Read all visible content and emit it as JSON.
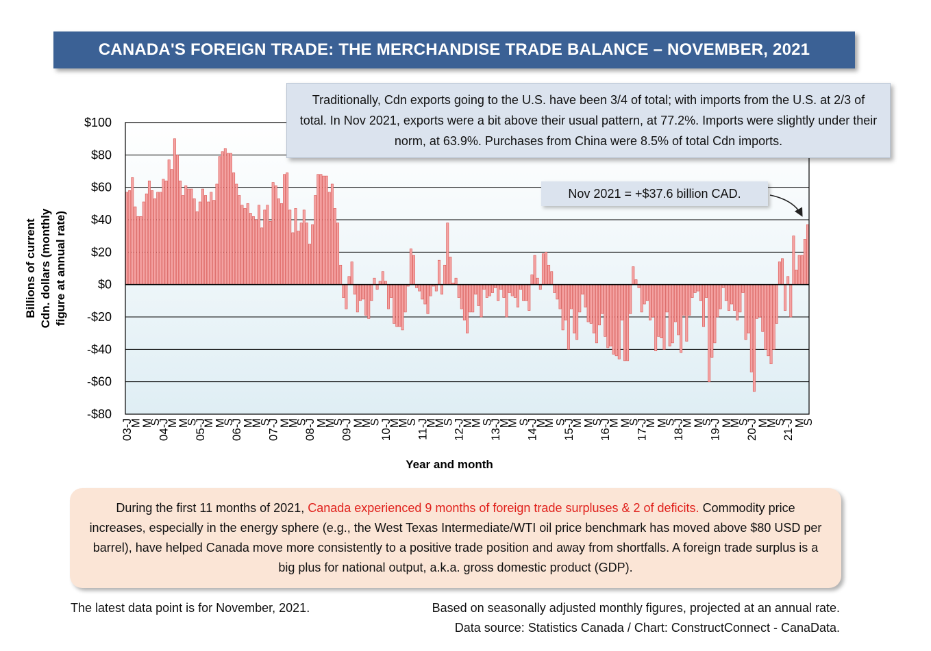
{
  "title": "CANADA'S FOREIGN TRADE: THE MERCHANDISE TRADE BALANCE – NOVEMBER, 2021",
  "note_box": "Traditionally, Cdn exports going to the U.S. have been 3/4 of total; with imports from the U.S. at 2/3 of total. In Nov 2021, exports were a bit above their usual pattern, at 77.2%. Imports were slightly under their norm, at 63.9%. Purchases from China were 8.5% of total Cdn imports.",
  "callout": "Nov 2021 = +$37.6 billion CAD.",
  "bottom_box": {
    "pre": "During the first 11 months of 2021, ",
    "highlight": "Canada experienced 9 months of foreign trade surpluses & 2 of deficits.",
    "post": " Commodity price increases, especially in the energy sphere (e.g., the West Texas Intermediate/WTI oil price benchmark has moved above $80 USD per barrel), have helped Canada move more consistently to a positive trade position and away from shortfalls. A foreign trade surplus is a big plus for national output, a.k.a. gross domestic product (GDP).",
    "highlight_color": "#e0201b"
  },
  "footer": {
    "left": "The latest data point is for November, 2021.",
    "right1": "Based on seasonally adjusted monthly figures, projected at an annual rate.",
    "right2": "Data source: Statistics Canada / Chart: ConstructConnect - CanaData."
  },
  "colors": {
    "title_bg": "#3b6195",
    "bar_fill": "#f4a3a3",
    "bar_stroke": "#d9534f",
    "plot_bg_top": "#ffffff",
    "plot_bg_bottom": "#dfeef4"
  },
  "chart_data": {
    "type": "bar",
    "xlabel": "Year and month",
    "ylabel": [
      "Billions of current",
      "Cdn. dollars (monthly",
      "figure at annual rate)"
    ],
    "ylim": [
      -80,
      100
    ],
    "yticks": [
      100,
      80,
      60,
      40,
      20,
      0,
      -20,
      -40,
      -60,
      -80
    ],
    "ytick_labels": [
      "$100",
      "$80",
      "$60",
      "$40",
      "$20",
      "$0",
      "-$20",
      "-$40",
      "-$60",
      "-$80"
    ],
    "x_tick_labels": [
      "03-J",
      "M",
      "M",
      "S",
      "04-J",
      "M",
      "M",
      "S",
      "05-J",
      "M",
      "M",
      "S",
      "06-J",
      "M",
      "M",
      "S",
      "07-J",
      "M",
      "M",
      "S",
      "08-J",
      "M",
      "M",
      "S",
      "09-J",
      "M",
      "M",
      "S",
      "10-J",
      "M",
      "M",
      "S",
      "11-J",
      "M",
      "M",
      "S",
      "12-J",
      "M",
      "M",
      "S",
      "13-J",
      "M",
      "M",
      "S",
      "14-J",
      "M",
      "M",
      "S",
      "15-J",
      "M",
      "M",
      "S",
      "16-J",
      "M",
      "M",
      "S",
      "17-J",
      "M",
      "M",
      "S",
      "18-J",
      "M",
      "M",
      "S",
      "19-J",
      "M",
      "M",
      "S",
      "20-J",
      "M",
      "M",
      "S",
      "21-J",
      "M",
      "S"
    ],
    "grid": "horizontal",
    "values": [
      57,
      58,
      66,
      48,
      42,
      42,
      51,
      56,
      64,
      58,
      53,
      57,
      57,
      65,
      64,
      77,
      71,
      90,
      80,
      64,
      55,
      61,
      59,
      59,
      53,
      45,
      51,
      59,
      55,
      51,
      57,
      52,
      62,
      79,
      82,
      84,
      81,
      81,
      69,
      62,
      55,
      49,
      47,
      50,
      44,
      42,
      40,
      49,
      35,
      46,
      49,
      39,
      63,
      61,
      53,
      50,
      68,
      69,
      46,
      32,
      47,
      33,
      38,
      46,
      38,
      25,
      37,
      55,
      68,
      68,
      67,
      67,
      57,
      62,
      47,
      38,
      12,
      -8,
      -15,
      5,
      14,
      -6,
      -17,
      -10,
      -9,
      -19,
      -21,
      -10,
      4,
      -3,
      2,
      8,
      2,
      -15,
      -8,
      -24,
      -26,
      -26,
      -28,
      -17,
      -1,
      22,
      18,
      -2,
      -4,
      -9,
      -12,
      -18,
      -7,
      -1,
      -4,
      15,
      -6,
      12,
      38,
      17,
      1,
      4,
      -8,
      -15,
      -22,
      -30,
      -17,
      -17,
      -6,
      -13,
      -20,
      -3,
      -8,
      -7,
      -5,
      -2,
      -10,
      -3,
      -8,
      -20,
      -5,
      -7,
      -8,
      -14,
      -3,
      -10,
      -10,
      -16,
      6,
      18,
      4,
      -3,
      19,
      20,
      12,
      8,
      -5,
      -9,
      -15,
      -28,
      -22,
      -40,
      -15,
      -30,
      -34,
      -17,
      -6,
      -14,
      -23,
      -24,
      -30,
      -36,
      -25,
      -18,
      -32,
      -39,
      -38,
      -43,
      -44,
      -46,
      -22,
      -47,
      -47,
      -18,
      11,
      3,
      -2,
      -17,
      -12,
      -10,
      -22,
      -20,
      -41,
      -32,
      -33,
      -40,
      -17,
      -38,
      -36,
      -23,
      -31,
      -42,
      -19,
      -35,
      -19,
      -8,
      -5,
      -4,
      -10,
      -26,
      -8,
      -60,
      -45,
      -36,
      -20,
      -15,
      -2,
      -10,
      -16,
      -12,
      -16,
      -22,
      -17,
      -5,
      -34,
      -30,
      -54,
      -66,
      -21,
      -20,
      -29,
      -40,
      -44,
      -49,
      -40,
      -24,
      14,
      16,
      -16,
      5,
      -20,
      30,
      9,
      18,
      18,
      28,
      37
    ]
  }
}
